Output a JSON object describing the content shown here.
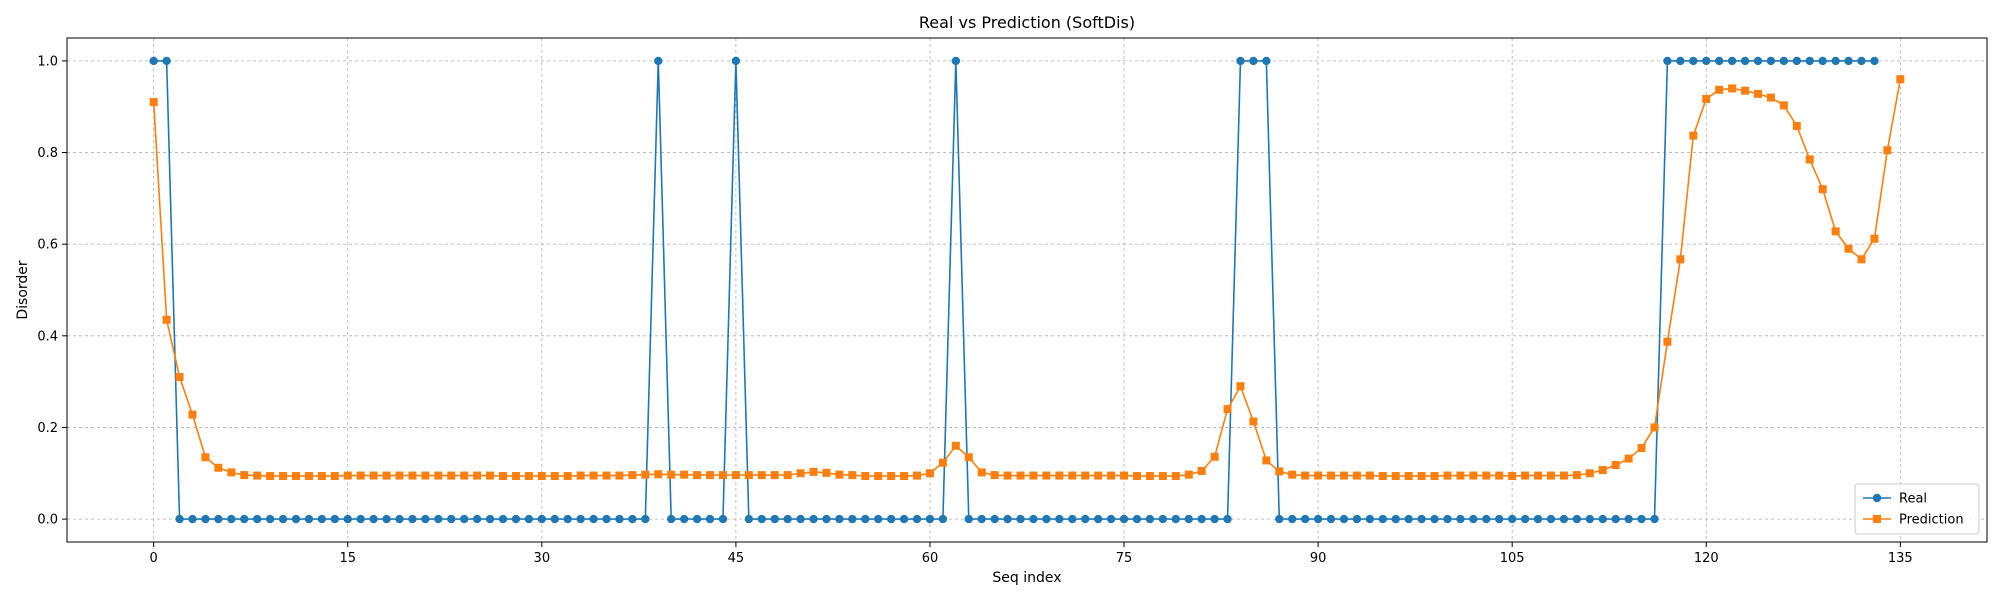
{
  "chart_data": {
    "type": "line",
    "title": "Real vs Prediction (SoftDis)",
    "xlabel": "Seq index",
    "ylabel": "Disorder",
    "xlim": [
      -6.7,
      141.7
    ],
    "ylim": [
      -0.05,
      1.05
    ],
    "xticks": [
      0,
      15,
      30,
      45,
      60,
      75,
      90,
      105,
      120,
      135
    ],
    "yticks": [
      0.0,
      0.2,
      0.4,
      0.6,
      0.8,
      1.0
    ],
    "ytick_labels": [
      "0.0",
      "0.2",
      "0.4",
      "0.6",
      "0.8",
      "1.0"
    ],
    "grid": true,
    "legend_position": "lower-right",
    "series": [
      {
        "name": "Real",
        "color": "#1f77b4",
        "marker": "circle",
        "values": [
          1,
          1,
          0,
          0,
          0,
          0,
          0,
          0,
          0,
          0,
          0,
          0,
          0,
          0,
          0,
          0,
          0,
          0,
          0,
          0,
          0,
          0,
          0,
          0,
          0,
          0,
          0,
          0,
          0,
          0,
          0,
          0,
          0,
          0,
          0,
          0,
          0,
          0,
          0,
          1,
          0,
          0,
          0,
          0,
          0,
          1,
          0,
          0,
          0,
          0,
          0,
          0,
          0,
          0,
          0,
          0,
          0,
          0,
          0,
          0,
          0,
          0,
          1,
          0,
          0,
          0,
          0,
          0,
          0,
          0,
          0,
          0,
          0,
          0,
          0,
          0,
          0,
          0,
          0,
          0,
          0,
          0,
          0,
          0,
          1,
          1,
          1,
          0,
          0,
          0,
          0,
          0,
          0,
          0,
          0,
          0,
          0,
          0,
          0,
          0,
          0,
          0,
          0,
          0,
          0,
          0,
          0,
          0,
          0,
          0,
          0,
          0,
          0,
          0,
          0,
          0,
          0,
          1,
          1,
          1,
          1,
          1,
          1,
          1,
          1,
          1,
          1,
          1,
          1,
          1,
          1,
          1,
          1,
          1
        ]
      },
      {
        "name": "Prediction",
        "color": "#ff7f0e",
        "marker": "square",
        "values": [
          0.91,
          0.435,
          0.31,
          0.228,
          0.135,
          0.112,
          0.102,
          0.096,
          0.095,
          0.094,
          0.094,
          0.094,
          0.094,
          0.094,
          0.094,
          0.095,
          0.095,
          0.095,
          0.095,
          0.095,
          0.095,
          0.095,
          0.095,
          0.095,
          0.095,
          0.095,
          0.095,
          0.094,
          0.094,
          0.094,
          0.094,
          0.094,
          0.094,
          0.095,
          0.095,
          0.095,
          0.095,
          0.096,
          0.097,
          0.098,
          0.097,
          0.097,
          0.096,
          0.096,
          0.096,
          0.096,
          0.096,
          0.096,
          0.096,
          0.096,
          0.1,
          0.103,
          0.101,
          0.097,
          0.096,
          0.094,
          0.094,
          0.094,
          0.094,
          0.095,
          0.1,
          0.123,
          0.16,
          0.135,
          0.102,
          0.096,
          0.095,
          0.095,
          0.095,
          0.095,
          0.095,
          0.095,
          0.095,
          0.095,
          0.095,
          0.095,
          0.094,
          0.094,
          0.094,
          0.094,
          0.097,
          0.105,
          0.136,
          0.24,
          0.29,
          0.213,
          0.128,
          0.104,
          0.097,
          0.095,
          0.095,
          0.095,
          0.095,
          0.095,
          0.095,
          0.094,
          0.094,
          0.094,
          0.094,
          0.094,
          0.095,
          0.095,
          0.095,
          0.095,
          0.095,
          0.094,
          0.095,
          0.095,
          0.095,
          0.095,
          0.096,
          0.1,
          0.107,
          0.118,
          0.132,
          0.155,
          0.2,
          0.387,
          0.567,
          0.837,
          0.917,
          0.937,
          0.94,
          0.935,
          0.928,
          0.92,
          0.903,
          0.858,
          0.785,
          0.72,
          0.628,
          0.59,
          0.567,
          0.612,
          0.805,
          0.96
        ]
      }
    ]
  }
}
